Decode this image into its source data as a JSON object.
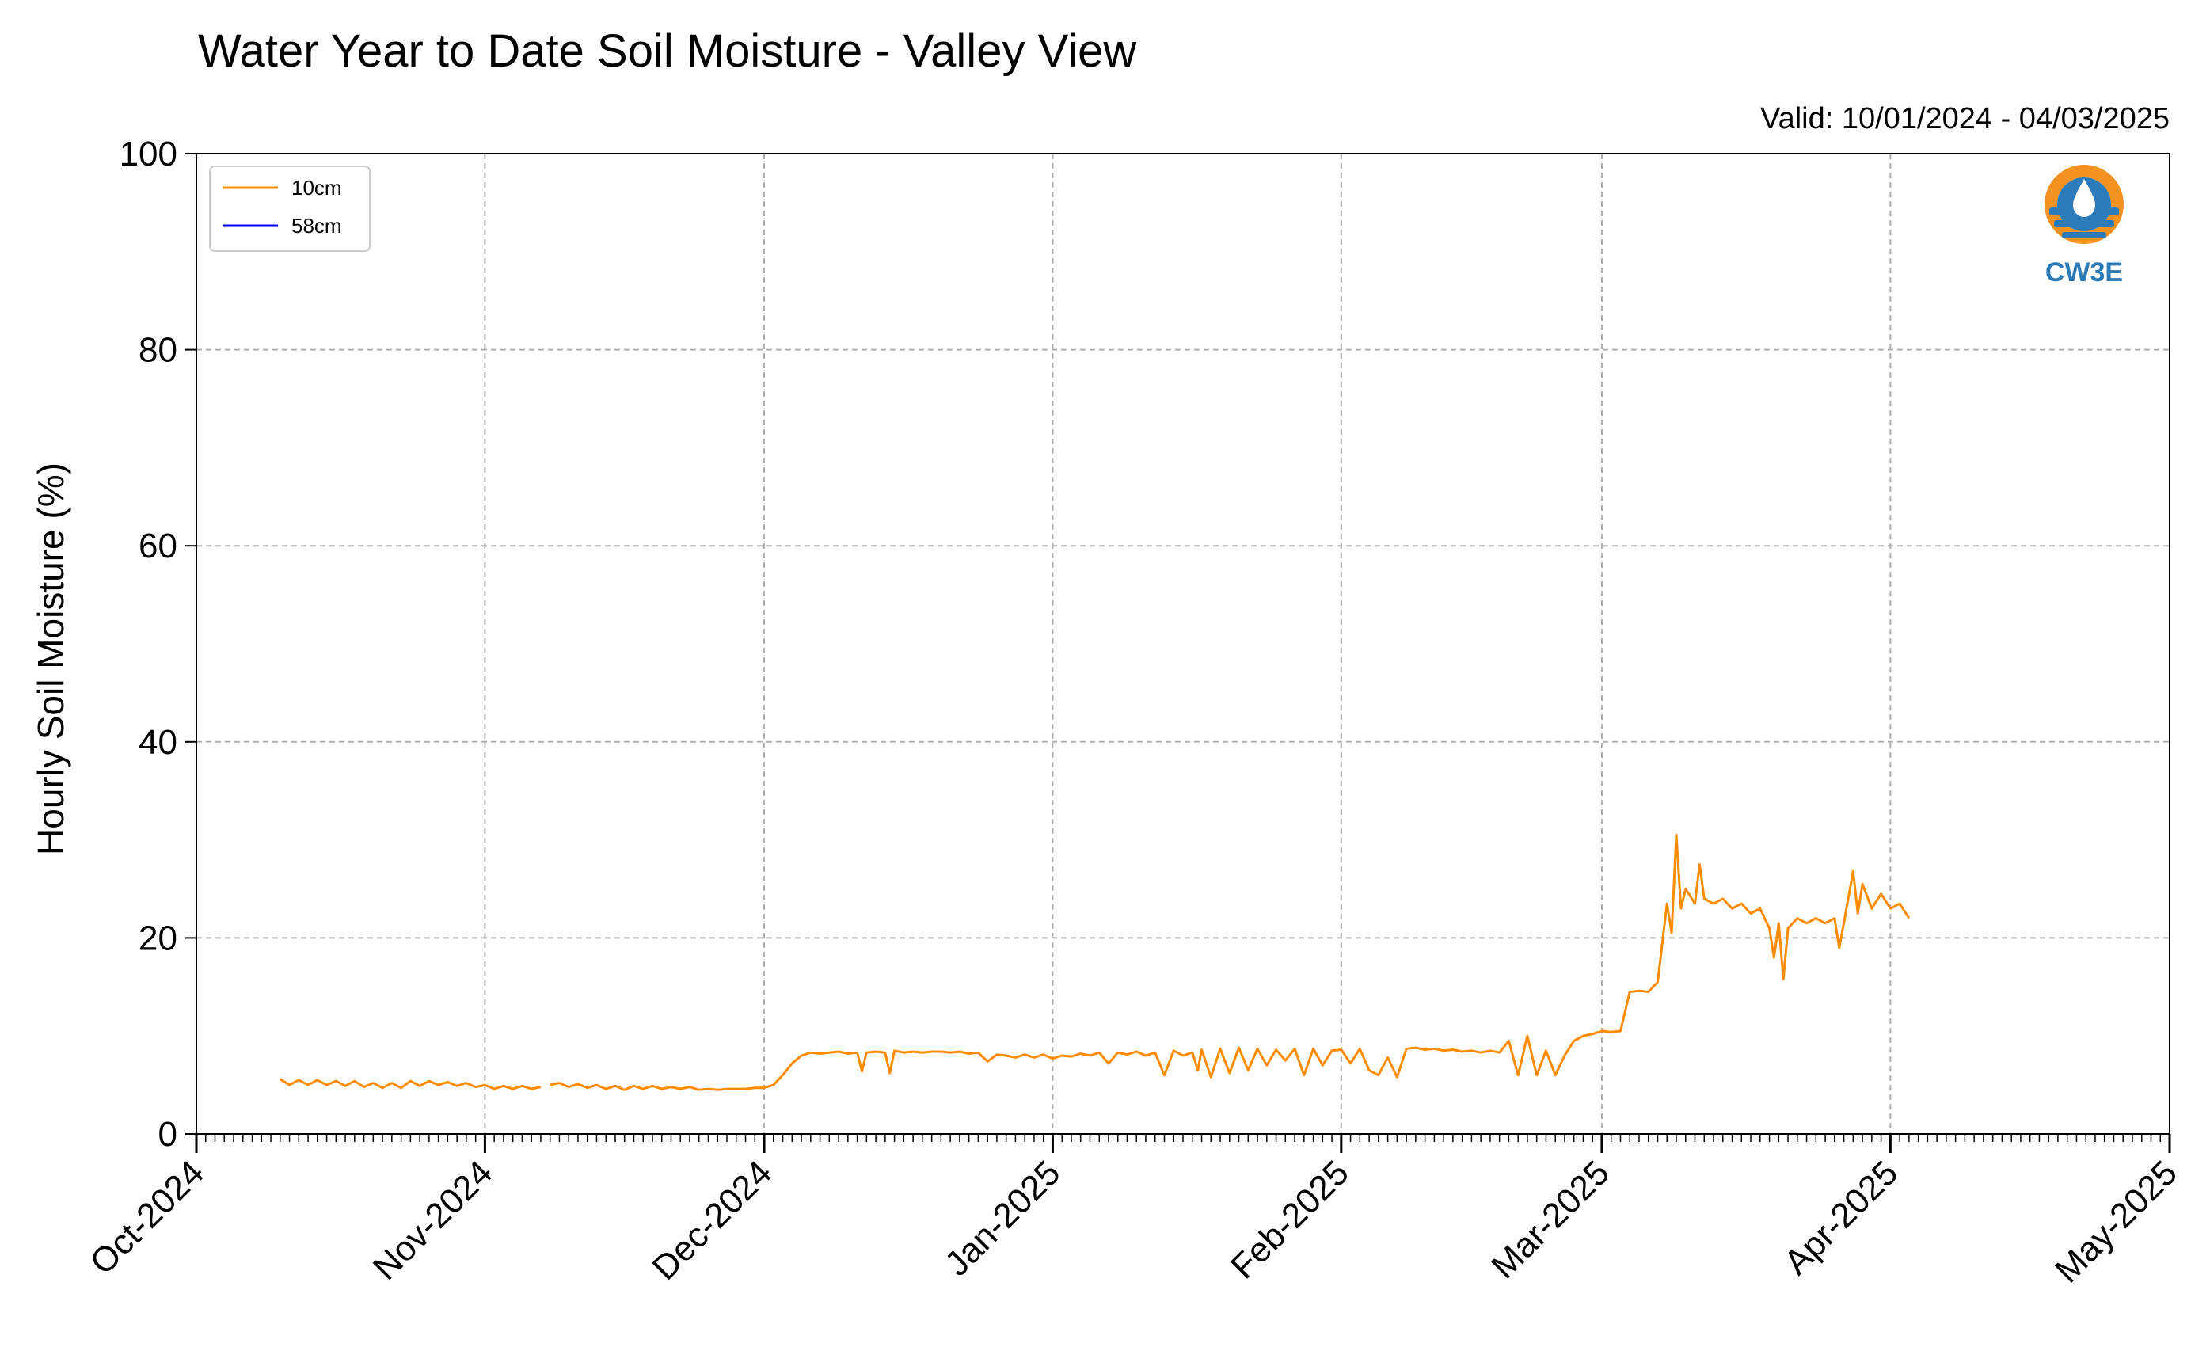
{
  "chart_data": {
    "type": "line",
    "title": "Water Year to Date Soil Moisture - Valley View",
    "subtitle": "Valid: 10/01/2024 - 04/03/2025",
    "ylabel": "Hourly Soil Moisture (%)",
    "xlabel": "",
    "ylim": [
      0,
      100
    ],
    "yticks": [
      0,
      20,
      40,
      60,
      80,
      100
    ],
    "xlim": [
      "2024-10-01",
      "2025-05-01"
    ],
    "xticks": [
      {
        "date": "2024-10-01",
        "label": "Oct-2024"
      },
      {
        "date": "2024-11-01",
        "label": "Nov-2024"
      },
      {
        "date": "2024-12-01",
        "label": "Dec-2024"
      },
      {
        "date": "2025-01-01",
        "label": "Jan-2025"
      },
      {
        "date": "2025-02-01",
        "label": "Feb-2025"
      },
      {
        "date": "2025-03-01",
        "label": "Mar-2025"
      },
      {
        "date": "2025-04-01",
        "label": "Apr-2025"
      },
      {
        "date": "2025-05-01",
        "label": "May-2025"
      }
    ],
    "grid": true,
    "legend_position": "top-left",
    "series": [
      {
        "name": "10cm",
        "color": "#ff8c00",
        "points": [
          [
            "2024-10-10",
            5.6
          ],
          [
            "2024-10-11",
            5.0
          ],
          [
            "2024-10-12",
            5.5
          ],
          [
            "2024-10-13",
            5.0
          ],
          [
            "2024-10-14",
            5.5
          ],
          [
            "2024-10-15",
            5.0
          ],
          [
            "2024-10-16",
            5.4
          ],
          [
            "2024-10-17",
            4.9
          ],
          [
            "2024-10-18",
            5.4
          ],
          [
            "2024-10-19",
            4.8
          ],
          [
            "2024-10-20",
            5.2
          ],
          [
            "2024-10-21",
            4.7
          ],
          [
            "2024-10-22",
            5.2
          ],
          [
            "2024-10-23",
            4.7
          ],
          [
            "2024-10-24",
            5.4
          ],
          [
            "2024-10-25",
            4.9
          ],
          [
            "2024-10-26",
            5.4
          ],
          [
            "2024-10-27",
            5.0
          ],
          [
            "2024-10-28",
            5.3
          ],
          [
            "2024-10-29",
            4.9
          ],
          [
            "2024-10-30",
            5.2
          ],
          [
            "2024-10-31",
            4.8
          ],
          [
            "2024-11-01",
            5.0
          ],
          [
            "2024-11-02",
            4.6
          ],
          [
            "2024-11-03",
            4.9
          ],
          [
            "2024-11-04",
            4.6
          ],
          [
            "2024-11-05",
            4.9
          ],
          [
            "2024-11-06",
            4.6
          ],
          [
            "2024-11-07",
            4.8
          ],
          null,
          [
            "2024-11-08",
            5.0
          ],
          [
            "2024-11-09",
            5.2
          ],
          [
            "2024-11-10",
            4.8
          ],
          [
            "2024-11-11",
            5.1
          ],
          [
            "2024-11-12",
            4.7
          ],
          [
            "2024-11-13",
            5.0
          ],
          [
            "2024-11-14",
            4.6
          ],
          [
            "2024-11-15",
            4.9
          ],
          [
            "2024-11-16",
            4.5
          ],
          [
            "2024-11-17",
            4.9
          ],
          [
            "2024-11-18",
            4.6
          ],
          [
            "2024-11-19",
            4.9
          ],
          [
            "2024-11-20",
            4.6
          ],
          [
            "2024-11-21",
            4.8
          ],
          [
            "2024-11-22",
            4.6
          ],
          [
            "2024-11-23",
            4.8
          ],
          [
            "2024-11-24",
            4.5
          ],
          [
            "2024-11-25",
            4.6
          ],
          [
            "2024-11-26",
            4.5
          ],
          [
            "2024-11-27",
            4.6
          ],
          [
            "2024-11-28",
            4.6
          ],
          [
            "2024-11-29",
            4.6
          ],
          [
            "2024-11-30",
            4.7
          ],
          [
            "2024-12-01",
            4.7
          ],
          [
            "2024-12-02",
            5.0
          ],
          [
            "2024-12-03",
            6.0
          ],
          [
            "2024-12-04",
            7.2
          ],
          [
            "2024-12-05",
            8.0
          ],
          [
            "2024-12-06",
            8.3
          ],
          [
            "2024-12-07",
            8.2
          ],
          [
            "2024-12-08",
            8.3
          ],
          [
            "2024-12-09",
            8.4
          ],
          [
            "2024-12-10",
            8.2
          ],
          [
            "2024-12-11",
            8.3
          ],
          [
            "2024-12-11.5",
            6.4
          ],
          [
            "2024-12-12",
            8.3
          ],
          [
            "2024-12-13",
            8.4
          ],
          [
            "2024-12-14",
            8.3
          ],
          [
            "2024-12-14.5",
            6.2
          ],
          [
            "2024-12-15",
            8.5
          ],
          [
            "2024-12-16",
            8.3
          ],
          [
            "2024-12-17",
            8.4
          ],
          [
            "2024-12-18",
            8.3
          ],
          [
            "2024-12-19",
            8.4
          ],
          [
            "2024-12-20",
            8.4
          ],
          [
            "2024-12-21",
            8.3
          ],
          [
            "2024-12-22",
            8.4
          ],
          [
            "2024-12-23",
            8.2
          ],
          [
            "2024-12-24",
            8.3
          ],
          [
            "2024-12-25",
            7.4
          ],
          [
            "2024-12-26",
            8.1
          ],
          [
            "2024-12-27",
            8.0
          ],
          [
            "2024-12-28",
            7.8
          ],
          [
            "2024-12-29",
            8.1
          ],
          [
            "2024-12-30",
            7.8
          ],
          [
            "2024-12-31",
            8.1
          ],
          [
            "2025-01-01",
            7.7
          ],
          [
            "2025-01-02",
            8.0
          ],
          [
            "2025-01-03",
            7.9
          ],
          [
            "2025-01-04",
            8.2
          ],
          [
            "2025-01-05",
            8.0
          ],
          [
            "2025-01-06",
            8.3
          ],
          [
            "2025-01-07",
            7.2
          ],
          [
            "2025-01-08",
            8.3
          ],
          [
            "2025-01-09",
            8.1
          ],
          [
            "2025-01-10",
            8.4
          ],
          [
            "2025-01-11",
            8.0
          ],
          [
            "2025-01-12",
            8.3
          ],
          [
            "2025-01-13",
            6.0
          ],
          [
            "2025-01-14",
            8.5
          ],
          [
            "2025-01-15",
            8.0
          ],
          [
            "2025-01-16",
            8.3
          ],
          [
            "2025-01-16.6",
            6.5
          ],
          [
            "2025-01-17",
            8.6
          ],
          [
            "2025-01-18",
            5.8
          ],
          [
            "2025-01-19",
            8.7
          ],
          [
            "2025-01-20",
            6.2
          ],
          [
            "2025-01-21",
            8.8
          ],
          [
            "2025-01-22",
            6.5
          ],
          [
            "2025-01-23",
            8.7
          ],
          [
            "2025-01-24",
            7.0
          ],
          [
            "2025-01-25",
            8.6
          ],
          [
            "2025-01-26",
            7.5
          ],
          [
            "2025-01-27",
            8.7
          ],
          [
            "2025-01-28",
            6.0
          ],
          [
            "2025-01-29",
            8.7
          ],
          [
            "2025-01-30",
            7.0
          ],
          [
            "2025-01-31",
            8.5
          ],
          [
            "2025-02-01",
            8.6
          ],
          [
            "2025-02-02",
            7.2
          ],
          [
            "2025-02-03",
            8.7
          ],
          [
            "2025-02-04",
            6.5
          ],
          [
            "2025-02-05",
            6.0
          ],
          [
            "2025-02-06",
            7.8
          ],
          [
            "2025-02-07",
            5.8
          ],
          [
            "2025-02-08",
            8.7
          ],
          [
            "2025-02-09",
            8.8
          ],
          [
            "2025-02-10",
            8.6
          ],
          [
            "2025-02-11",
            8.7
          ],
          [
            "2025-02-12",
            8.5
          ],
          [
            "2025-02-13",
            8.6
          ],
          [
            "2025-02-14",
            8.4
          ],
          [
            "2025-02-15",
            8.5
          ],
          [
            "2025-02-16",
            8.3
          ],
          [
            "2025-02-17",
            8.5
          ],
          [
            "2025-02-18",
            8.3
          ],
          [
            "2025-02-19",
            9.5
          ],
          [
            "2025-02-20",
            6.0
          ],
          [
            "2025-02-21",
            10.0
          ],
          [
            "2025-02-22",
            6.0
          ],
          [
            "2025-02-23",
            8.5
          ],
          [
            "2025-02-24",
            6.0
          ],
          [
            "2025-02-25",
            8.0
          ],
          [
            "2025-02-26",
            9.5
          ],
          [
            "2025-02-27",
            10.0
          ],
          [
            "2025-02-28",
            10.2
          ],
          [
            "2025-03-01",
            10.5
          ],
          [
            "2025-03-02",
            10.4
          ],
          [
            "2025-03-03",
            10.5
          ],
          [
            "2025-03-04",
            14.5
          ],
          [
            "2025-03-05",
            14.6
          ],
          [
            "2025-03-06",
            14.5
          ],
          [
            "2025-03-07",
            15.5
          ],
          [
            "2025-03-08",
            23.5
          ],
          [
            "2025-03-08.5",
            20.5
          ],
          [
            "2025-03-09",
            30.5
          ],
          [
            "2025-03-09.5",
            23.0
          ],
          [
            "2025-03-10",
            25.0
          ],
          [
            "2025-03-11",
            23.5
          ],
          [
            "2025-03-11.5",
            27.5
          ],
          [
            "2025-03-12",
            24.0
          ],
          [
            "2025-03-13",
            23.5
          ],
          [
            "2025-03-14",
            24.0
          ],
          [
            "2025-03-15",
            23.0
          ],
          [
            "2025-03-16",
            23.5
          ],
          [
            "2025-03-17",
            22.5
          ],
          [
            "2025-03-18",
            23.0
          ],
          [
            "2025-03-19",
            21.0
          ],
          [
            "2025-03-19.5",
            18.0
          ],
          [
            "2025-03-20",
            21.5
          ],
          [
            "2025-03-20.5",
            15.8
          ],
          [
            "2025-03-21",
            21.0
          ],
          [
            "2025-03-22",
            22.0
          ],
          [
            "2025-03-23",
            21.5
          ],
          [
            "2025-03-24",
            22.0
          ],
          [
            "2025-03-25",
            21.5
          ],
          [
            "2025-03-26",
            22.0
          ],
          [
            "2025-03-26.5",
            19.0
          ],
          [
            "2025-03-27",
            21.5
          ],
          [
            "2025-03-28",
            26.8
          ],
          [
            "2025-03-28.5",
            22.5
          ],
          [
            "2025-03-29",
            25.5
          ],
          [
            "2025-03-30",
            23.0
          ],
          [
            "2025-03-31",
            24.5
          ],
          [
            "2025-04-01",
            23.0
          ],
          [
            "2025-04-02",
            23.5
          ],
          [
            "2025-04-03",
            22.0
          ]
        ]
      },
      {
        "name": "58cm",
        "color": "#0000ff",
        "points": []
      }
    ]
  },
  "logo": {
    "text": "CW3E",
    "colors": {
      "orange": "#f39221",
      "blue": "#2b7bb9"
    }
  }
}
